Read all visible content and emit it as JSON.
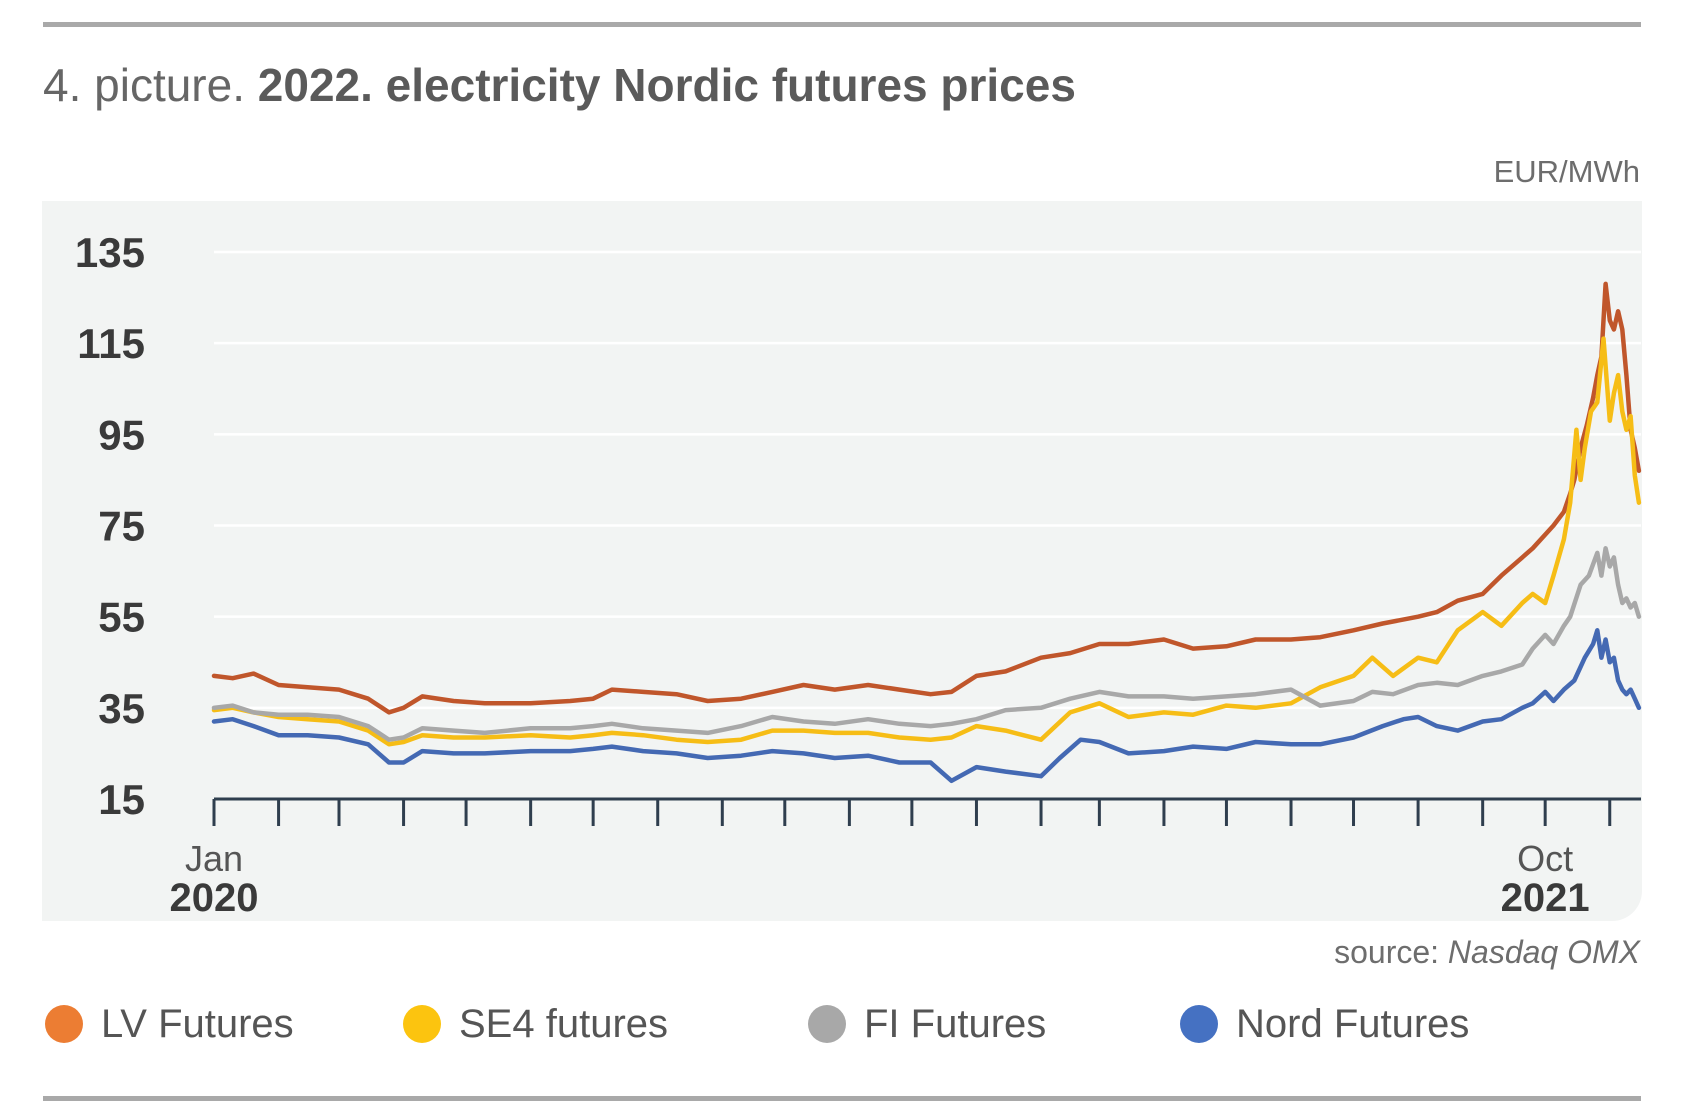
{
  "title": {
    "prefix": "4. picture.",
    "main": "2022. electricity Nordic futures prices"
  },
  "unit": "EUR/MWh",
  "source": {
    "label": "source:",
    "name": "Nasdaq OMX"
  },
  "colors": {
    "LV Futures": "#c0562b",
    "SE4 futures": "#f6bd16",
    "FI Futures": "#a8a8a8",
    "Nord Futures": "#4469b3",
    "legend_lv_dot": "#e87a3a",
    "plot_background": "#f2f4f3",
    "axis": "#2f3e4e"
  },
  "legend": [
    {
      "name": "LV Futures",
      "dot_color": "#ec7d33"
    },
    {
      "name": "SE4 futures",
      "dot_color": "#fcc40f"
    },
    {
      "name": "FI Futures",
      "dot_color": "#a8a8a8"
    },
    {
      "name": "Nord Futures",
      "dot_color": "#4571c2"
    }
  ],
  "chart_data": {
    "type": "line",
    "title": "2022. electricity Nordic futures prices",
    "ylabel": "EUR/MWh",
    "ylim": [
      15,
      135
    ],
    "yticks": [
      15,
      35,
      55,
      75,
      95,
      115,
      135
    ],
    "grid": true,
    "x_unit": "month",
    "xlim": [
      "2020-01",
      "2021-11"
    ],
    "x_tick_labels": [
      {
        "x": "2020-01",
        "month": "Jan",
        "year": "2020"
      },
      {
        "x": "2021-10",
        "month": "Oct",
        "year": "2021"
      }
    ],
    "legend_position": "bottom",
    "series": [
      {
        "name": "LV Futures",
        "points": [
          [
            "2020-01-01",
            42
          ],
          [
            "2020-01-10",
            41.5
          ],
          [
            "2020-01-20",
            42.5
          ],
          [
            "2020-02-01",
            40
          ],
          [
            "2020-02-15",
            39.5
          ],
          [
            "2020-03-01",
            39
          ],
          [
            "2020-03-15",
            37
          ],
          [
            "2020-03-25",
            34
          ],
          [
            "2020-04-01",
            35
          ],
          [
            "2020-04-10",
            37.5
          ],
          [
            "2020-04-25",
            36.5
          ],
          [
            "2020-05-10",
            36
          ],
          [
            "2020-06-01",
            36
          ],
          [
            "2020-06-20",
            36.5
          ],
          [
            "2020-07-01",
            37
          ],
          [
            "2020-07-10",
            39
          ],
          [
            "2020-07-25",
            38.5
          ],
          [
            "2020-08-10",
            38
          ],
          [
            "2020-08-25",
            36.5
          ],
          [
            "2020-09-10",
            37
          ],
          [
            "2020-09-25",
            38.5
          ],
          [
            "2020-10-10",
            40
          ],
          [
            "2020-10-25",
            39
          ],
          [
            "2020-11-10",
            40
          ],
          [
            "2020-11-25",
            39
          ],
          [
            "2020-12-10",
            38
          ],
          [
            "2020-12-20",
            38.5
          ],
          [
            "2021-01-01",
            42
          ],
          [
            "2021-01-15",
            43
          ],
          [
            "2021-02-01",
            46
          ],
          [
            "2021-02-15",
            47
          ],
          [
            "2021-03-01",
            49
          ],
          [
            "2021-03-15",
            49
          ],
          [
            "2021-04-01",
            50
          ],
          [
            "2021-04-15",
            48
          ],
          [
            "2021-05-01",
            48.5
          ],
          [
            "2021-05-15",
            50
          ],
          [
            "2021-06-01",
            50
          ],
          [
            "2021-06-15",
            50.5
          ],
          [
            "2021-07-01",
            52
          ],
          [
            "2021-07-15",
            53.5
          ],
          [
            "2021-08-01",
            55
          ],
          [
            "2021-08-10",
            56
          ],
          [
            "2021-08-20",
            58.5
          ],
          [
            "2021-09-01",
            60
          ],
          [
            "2021-09-10",
            64
          ],
          [
            "2021-09-20",
            68
          ],
          [
            "2021-09-25",
            70
          ],
          [
            "2021-10-01",
            73
          ],
          [
            "2021-10-05",
            75
          ],
          [
            "2021-10-10",
            78
          ],
          [
            "2021-10-13",
            82
          ],
          [
            "2021-10-15",
            85
          ],
          [
            "2021-10-18",
            92
          ],
          [
            "2021-10-21",
            97
          ],
          [
            "2021-10-24",
            103
          ],
          [
            "2021-10-26",
            108
          ],
          [
            "2021-10-28",
            112
          ],
          [
            "2021-10-30",
            128
          ],
          [
            "2021-11-01",
            120
          ],
          [
            "2021-11-03",
            118
          ],
          [
            "2021-11-05",
            122
          ],
          [
            "2021-11-07",
            118
          ],
          [
            "2021-11-09",
            108
          ],
          [
            "2021-11-11",
            96
          ],
          [
            "2021-11-13",
            92
          ],
          [
            "2021-11-15",
            87
          ]
        ]
      },
      {
        "name": "SE4 futures",
        "points": [
          [
            "2020-01-01",
            34.5
          ],
          [
            "2020-01-10",
            35
          ],
          [
            "2020-01-20",
            34
          ],
          [
            "2020-02-01",
            33
          ],
          [
            "2020-02-15",
            32.5
          ],
          [
            "2020-03-01",
            32
          ],
          [
            "2020-03-15",
            30
          ],
          [
            "2020-03-25",
            27
          ],
          [
            "2020-04-01",
            27.5
          ],
          [
            "2020-04-10",
            29
          ],
          [
            "2020-04-25",
            28.5
          ],
          [
            "2020-05-10",
            28.5
          ],
          [
            "2020-06-01",
            29
          ],
          [
            "2020-06-20",
            28.5
          ],
          [
            "2020-07-01",
            29
          ],
          [
            "2020-07-10",
            29.5
          ],
          [
            "2020-07-25",
            29
          ],
          [
            "2020-08-10",
            28
          ],
          [
            "2020-08-25",
            27.5
          ],
          [
            "2020-09-10",
            28
          ],
          [
            "2020-09-25",
            30
          ],
          [
            "2020-10-10",
            30
          ],
          [
            "2020-10-25",
            29.5
          ],
          [
            "2020-11-10",
            29.5
          ],
          [
            "2020-11-25",
            28.5
          ],
          [
            "2020-12-10",
            28
          ],
          [
            "2020-12-20",
            28.5
          ],
          [
            "2021-01-01",
            31
          ],
          [
            "2021-01-15",
            30
          ],
          [
            "2021-02-01",
            28
          ],
          [
            "2021-02-15",
            34
          ],
          [
            "2021-03-01",
            36
          ],
          [
            "2021-03-15",
            33
          ],
          [
            "2021-04-01",
            34
          ],
          [
            "2021-04-15",
            33.5
          ],
          [
            "2021-05-01",
            35.5
          ],
          [
            "2021-05-15",
            35
          ],
          [
            "2021-06-01",
            36
          ],
          [
            "2021-06-15",
            39.5
          ],
          [
            "2021-07-01",
            42
          ],
          [
            "2021-07-10",
            46
          ],
          [
            "2021-07-20",
            42
          ],
          [
            "2021-08-01",
            46
          ],
          [
            "2021-08-10",
            45
          ],
          [
            "2021-08-20",
            52
          ],
          [
            "2021-09-01",
            56
          ],
          [
            "2021-09-10",
            53
          ],
          [
            "2021-09-20",
            58
          ],
          [
            "2021-09-25",
            60
          ],
          [
            "2021-10-01",
            58
          ],
          [
            "2021-10-05",
            64
          ],
          [
            "2021-10-10",
            72
          ],
          [
            "2021-10-13",
            80
          ],
          [
            "2021-10-16",
            96
          ],
          [
            "2021-10-18",
            85
          ],
          [
            "2021-10-20",
            92
          ],
          [
            "2021-10-23",
            100
          ],
          [
            "2021-10-26",
            102
          ],
          [
            "2021-10-29",
            116
          ],
          [
            "2021-11-01",
            98
          ],
          [
            "2021-11-03",
            104
          ],
          [
            "2021-11-05",
            108
          ],
          [
            "2021-11-07",
            100
          ],
          [
            "2021-11-09",
            96
          ],
          [
            "2021-11-11",
            99
          ],
          [
            "2021-11-13",
            86
          ],
          [
            "2021-11-15",
            80
          ]
        ]
      },
      {
        "name": "FI Futures",
        "points": [
          [
            "2020-01-01",
            35
          ],
          [
            "2020-01-10",
            35.5
          ],
          [
            "2020-01-20",
            34
          ],
          [
            "2020-02-01",
            33.5
          ],
          [
            "2020-02-15",
            33.5
          ],
          [
            "2020-03-01",
            33
          ],
          [
            "2020-03-15",
            31
          ],
          [
            "2020-03-25",
            28
          ],
          [
            "2020-04-01",
            28.5
          ],
          [
            "2020-04-10",
            30.5
          ],
          [
            "2020-04-25",
            30
          ],
          [
            "2020-05-10",
            29.5
          ],
          [
            "2020-06-01",
            30.5
          ],
          [
            "2020-06-20",
            30.5
          ],
          [
            "2020-07-01",
            31
          ],
          [
            "2020-07-10",
            31.5
          ],
          [
            "2020-07-25",
            30.5
          ],
          [
            "2020-08-10",
            30
          ],
          [
            "2020-08-25",
            29.5
          ],
          [
            "2020-09-10",
            31
          ],
          [
            "2020-09-25",
            33
          ],
          [
            "2020-10-10",
            32
          ],
          [
            "2020-10-25",
            31.5
          ],
          [
            "2020-11-10",
            32.5
          ],
          [
            "2020-11-25",
            31.5
          ],
          [
            "2020-12-10",
            31
          ],
          [
            "2020-12-20",
            31.5
          ],
          [
            "2021-01-01",
            32.5
          ],
          [
            "2021-01-15",
            34.5
          ],
          [
            "2021-02-01",
            35
          ],
          [
            "2021-02-15",
            37
          ],
          [
            "2021-03-01",
            38.5
          ],
          [
            "2021-03-15",
            37.5
          ],
          [
            "2021-04-01",
            37.5
          ],
          [
            "2021-04-15",
            37
          ],
          [
            "2021-05-01",
            37.5
          ],
          [
            "2021-05-15",
            38
          ],
          [
            "2021-06-01",
            39
          ],
          [
            "2021-06-15",
            35.5
          ],
          [
            "2021-07-01",
            36.5
          ],
          [
            "2021-07-10",
            38.5
          ],
          [
            "2021-07-20",
            38
          ],
          [
            "2021-08-01",
            40
          ],
          [
            "2021-08-10",
            40.5
          ],
          [
            "2021-08-20",
            40
          ],
          [
            "2021-09-01",
            42
          ],
          [
            "2021-09-10",
            43
          ],
          [
            "2021-09-20",
            44.5
          ],
          [
            "2021-09-25",
            48
          ],
          [
            "2021-10-01",
            51
          ],
          [
            "2021-10-05",
            49
          ],
          [
            "2021-10-10",
            53
          ],
          [
            "2021-10-13",
            55
          ],
          [
            "2021-10-18",
            62
          ],
          [
            "2021-10-22",
            64
          ],
          [
            "2021-10-26",
            69
          ],
          [
            "2021-10-28",
            64
          ],
          [
            "2021-10-30",
            70
          ],
          [
            "2021-11-01",
            66
          ],
          [
            "2021-11-03",
            68
          ],
          [
            "2021-11-05",
            62
          ],
          [
            "2021-11-07",
            58
          ],
          [
            "2021-11-09",
            59
          ],
          [
            "2021-11-11",
            57
          ],
          [
            "2021-11-13",
            58
          ],
          [
            "2021-11-15",
            55
          ]
        ]
      },
      {
        "name": "Nord Futures",
        "points": [
          [
            "2020-01-01",
            32
          ],
          [
            "2020-01-10",
            32.5
          ],
          [
            "2020-01-20",
            31
          ],
          [
            "2020-02-01",
            29
          ],
          [
            "2020-02-15",
            29
          ],
          [
            "2020-03-01",
            28.5
          ],
          [
            "2020-03-15",
            27
          ],
          [
            "2020-03-25",
            23
          ],
          [
            "2020-04-01",
            23
          ],
          [
            "2020-04-10",
            25.5
          ],
          [
            "2020-04-25",
            25
          ],
          [
            "2020-05-10",
            25
          ],
          [
            "2020-06-01",
            25.5
          ],
          [
            "2020-06-20",
            25.5
          ],
          [
            "2020-07-01",
            26
          ],
          [
            "2020-07-10",
            26.5
          ],
          [
            "2020-07-25",
            25.5
          ],
          [
            "2020-08-10",
            25
          ],
          [
            "2020-08-25",
            24
          ],
          [
            "2020-09-10",
            24.5
          ],
          [
            "2020-09-25",
            25.5
          ],
          [
            "2020-10-10",
            25
          ],
          [
            "2020-10-25",
            24
          ],
          [
            "2020-11-10",
            24.5
          ],
          [
            "2020-11-25",
            23
          ],
          [
            "2020-12-10",
            23
          ],
          [
            "2020-12-20",
            19
          ],
          [
            "2021-01-01",
            22
          ],
          [
            "2021-01-15",
            21
          ],
          [
            "2021-02-01",
            20
          ],
          [
            "2021-02-10",
            24
          ],
          [
            "2021-02-20",
            28
          ],
          [
            "2021-03-01",
            27.5
          ],
          [
            "2021-03-15",
            25
          ],
          [
            "2021-04-01",
            25.5
          ],
          [
            "2021-04-15",
            26.5
          ],
          [
            "2021-05-01",
            26
          ],
          [
            "2021-05-15",
            27.5
          ],
          [
            "2021-06-01",
            27
          ],
          [
            "2021-06-15",
            27
          ],
          [
            "2021-07-01",
            28.5
          ],
          [
            "2021-07-15",
            31
          ],
          [
            "2021-07-25",
            32.5
          ],
          [
            "2021-08-01",
            33
          ],
          [
            "2021-08-10",
            31
          ],
          [
            "2021-08-20",
            30
          ],
          [
            "2021-09-01",
            32
          ],
          [
            "2021-09-10",
            32.5
          ],
          [
            "2021-09-20",
            35
          ],
          [
            "2021-09-25",
            36
          ],
          [
            "2021-10-01",
            38.5
          ],
          [
            "2021-10-05",
            36.5
          ],
          [
            "2021-10-10",
            39
          ],
          [
            "2021-10-15",
            41
          ],
          [
            "2021-10-20",
            46
          ],
          [
            "2021-10-24",
            49
          ],
          [
            "2021-10-26",
            52
          ],
          [
            "2021-10-28",
            46
          ],
          [
            "2021-10-30",
            50
          ],
          [
            "2021-11-01",
            45
          ],
          [
            "2021-11-03",
            46
          ],
          [
            "2021-11-05",
            41
          ],
          [
            "2021-11-07",
            39
          ],
          [
            "2021-11-09",
            38
          ],
          [
            "2021-11-11",
            39
          ],
          [
            "2021-11-13",
            37
          ],
          [
            "2021-11-15",
            35
          ]
        ]
      }
    ]
  }
}
